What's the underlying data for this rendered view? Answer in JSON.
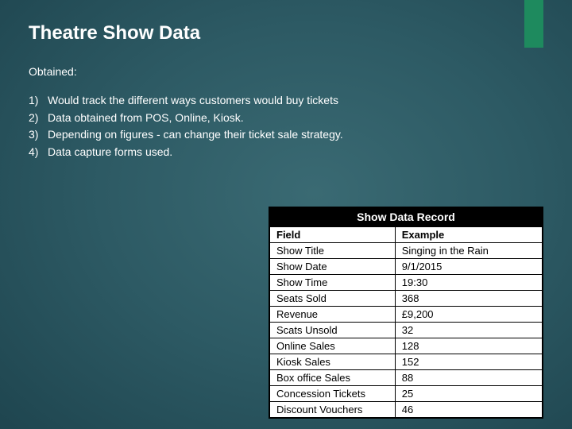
{
  "slide": {
    "title": "Theatre Show Data",
    "subtitle": "Obtained:",
    "accent_color": "#1e8a5e",
    "background_gradient": [
      "#3a6a73",
      "#2d5a64",
      "#1f4650",
      "#163842",
      "#102a32"
    ],
    "text_color": "#ffffff",
    "title_fontsize": 24,
    "body_fontsize": 14
  },
  "list": {
    "items": [
      {
        "num": "1)",
        "text": "Would track the different ways customers would buy tickets"
      },
      {
        "num": "2)",
        "text": "Data obtained from POS, Online, Kiosk."
      },
      {
        "num": "3)",
        "text": "Depending on figures - can change their ticket sale strategy."
      },
      {
        "num": "4)",
        "text": "Data capture forms used."
      }
    ]
  },
  "table": {
    "title": "Show Data Record",
    "title_bg": "#000000",
    "title_color": "#ffffff",
    "border_color": "#000000",
    "cell_bg": "#ffffff",
    "cell_color": "#000000",
    "fontsize": 13,
    "columns": [
      "Field",
      "Example"
    ],
    "rows": [
      [
        "Show Title",
        "Singing in the Rain"
      ],
      [
        "Show Date",
        "9/1/2015"
      ],
      [
        "Show Time",
        "19:30"
      ],
      [
        "Seats Sold",
        "368"
      ],
      [
        "Revenue",
        "£9,200"
      ],
      [
        "Scats Unsold",
        "32"
      ],
      [
        "Online Sales",
        "128"
      ],
      [
        "Kiosk Sales",
        "152"
      ],
      [
        "Box office Sales",
        "88"
      ],
      [
        "Concession Tickets",
        "25"
      ],
      [
        "Discount Vouchers",
        "46"
      ]
    ]
  }
}
